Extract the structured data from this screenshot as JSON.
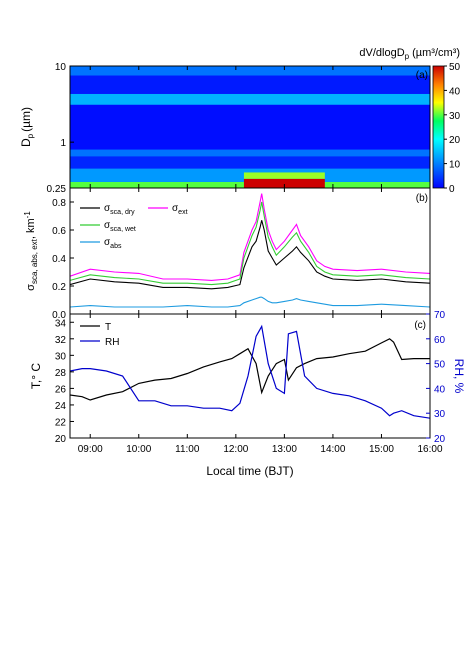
{
  "figure": {
    "xlabel": "Local time (BJT)",
    "x_ticks": [
      "09:00",
      "10:00",
      "11:00",
      "12:00",
      "13:00",
      "14:00",
      "15:00",
      "16:00"
    ],
    "x_range": [
      "08:35",
      "16:00"
    ]
  },
  "colors": {
    "sca_dry": "#000000",
    "sca_wet": "#33cc33",
    "ext": "#ff00ff",
    "abs": "#1e9be0",
    "T": "#000000",
    "RH": "#0000cc"
  },
  "chart_data": [
    {
      "type": "heatmap",
      "panel": "(a)",
      "title": "dV/dlogD",
      "title_sub": "p",
      "title_unit": "(µm³/cm³)",
      "ylabel": "D",
      "ylabel_sub": "p",
      "ylabel_unit": "(µm)",
      "y_scale": "log",
      "ylim": [
        0.25,
        10
      ],
      "y_ticks": [
        "10",
        "1",
        "0.25"
      ],
      "colorbar": {
        "min": 0,
        "max": 50,
        "ticks": [
          "50",
          "40",
          "30",
          "20",
          "10",
          "0"
        ]
      },
      "bands": [
        {
          "from": "08:35",
          "to": "16:00",
          "dmin": 0.25,
          "dmax": 0.3,
          "value": 30
        },
        {
          "from": "08:35",
          "to": "16:00",
          "dmin": 0.3,
          "dmax": 0.45,
          "value": 12
        },
        {
          "from": "08:35",
          "to": "16:00",
          "dmin": 0.45,
          "dmax": 0.65,
          "value": 3
        },
        {
          "from": "08:35",
          "to": "16:00",
          "dmin": 0.65,
          "dmax": 0.8,
          "value": 9
        },
        {
          "from": "08:35",
          "to": "16:00",
          "dmin": 0.8,
          "dmax": 3.1,
          "value": 1
        },
        {
          "from": "08:35",
          "to": "16:00",
          "dmin": 3.1,
          "dmax": 4.3,
          "value": 14
        },
        {
          "from": "08:35",
          "to": "16:00",
          "dmin": 4.3,
          "dmax": 7.5,
          "value": 2
        },
        {
          "from": "08:35",
          "to": "16:00",
          "dmin": 7.5,
          "dmax": 10,
          "value": 9
        },
        {
          "from": "12:10",
          "to": "13:50",
          "dmin": 0.25,
          "dmax": 0.33,
          "value": 50
        },
        {
          "from": "12:10",
          "to": "13:50",
          "dmin": 0.33,
          "dmax": 0.4,
          "value": 32
        }
      ]
    },
    {
      "type": "line",
      "panel": "(b)",
      "ylabel": "σ",
      "ylabel_sub": "sca, abs, ext",
      "ylabel_unit": ", km",
      "ylabel_sup": "-1",
      "ylim": [
        0.0,
        0.9
      ],
      "y_ticks": [
        "0.0",
        "0.2",
        "0.4",
        "0.6",
        "0.8"
      ],
      "legend_position": "top-left",
      "legend": [
        {
          "base": "σ",
          "sub": "sca, dry"
        },
        {
          "base": "σ",
          "sub": "ext"
        },
        {
          "base": "σ",
          "sub": "sca, wet"
        },
        {
          "base": "σ",
          "sub": "abs"
        }
      ],
      "series": [
        {
          "name": "σsca, dry",
          "x": [
            "08:35",
            "09:00",
            "09:30",
            "10:00",
            "10:30",
            "11:00",
            "11:30",
            "11:50",
            "12:05",
            "12:10",
            "12:20",
            "12:25",
            "12:30",
            "12:32",
            "12:35",
            "12:40",
            "12:45",
            "12:50",
            "13:00",
            "13:10",
            "13:15",
            "13:20",
            "13:30",
            "13:40",
            "13:50",
            "14:00",
            "14:30",
            "15:00",
            "15:30",
            "16:00"
          ],
          "values": [
            0.21,
            0.25,
            0.23,
            0.22,
            0.19,
            0.19,
            0.18,
            0.19,
            0.21,
            0.33,
            0.48,
            0.52,
            0.62,
            0.67,
            0.6,
            0.45,
            0.4,
            0.35,
            0.4,
            0.45,
            0.48,
            0.44,
            0.38,
            0.3,
            0.27,
            0.25,
            0.24,
            0.25,
            0.23,
            0.22
          ]
        },
        {
          "name": "σsca, wet",
          "x": [
            "08:35",
            "09:00",
            "09:30",
            "10:00",
            "10:30",
            "11:00",
            "11:30",
            "11:50",
            "12:05",
            "12:10",
            "12:20",
            "12:25",
            "12:30",
            "12:32",
            "12:35",
            "12:40",
            "12:45",
            "12:50",
            "13:00",
            "13:10",
            "13:15",
            "13:20",
            "13:30",
            "13:40",
            "13:50",
            "14:00",
            "14:30",
            "15:00",
            "15:30",
            "16:00"
          ],
          "values": [
            0.24,
            0.28,
            0.26,
            0.25,
            0.22,
            0.22,
            0.21,
            0.22,
            0.25,
            0.4,
            0.56,
            0.62,
            0.74,
            0.8,
            0.7,
            0.55,
            0.48,
            0.42,
            0.48,
            0.55,
            0.58,
            0.52,
            0.44,
            0.34,
            0.3,
            0.28,
            0.27,
            0.28,
            0.26,
            0.25
          ]
        },
        {
          "name": "σext",
          "x": [
            "08:35",
            "09:00",
            "09:30",
            "10:00",
            "10:30",
            "11:00",
            "11:30",
            "11:50",
            "12:05",
            "12:10",
            "12:20",
            "12:25",
            "12:30",
            "12:32",
            "12:35",
            "12:40",
            "12:45",
            "12:50",
            "13:00",
            "13:10",
            "13:15",
            "13:20",
            "13:30",
            "13:40",
            "13:50",
            "14:00",
            "14:30",
            "15:00",
            "15:30",
            "16:00"
          ],
          "values": [
            0.27,
            0.32,
            0.3,
            0.29,
            0.25,
            0.25,
            0.24,
            0.25,
            0.28,
            0.44,
            0.6,
            0.66,
            0.8,
            0.86,
            0.75,
            0.6,
            0.52,
            0.46,
            0.52,
            0.6,
            0.64,
            0.56,
            0.48,
            0.38,
            0.34,
            0.32,
            0.31,
            0.32,
            0.3,
            0.29
          ]
        },
        {
          "name": "σabs",
          "x": [
            "08:35",
            "09:00",
            "09:30",
            "10:00",
            "10:30",
            "11:00",
            "11:30",
            "11:50",
            "12:05",
            "12:10",
            "12:20",
            "12:25",
            "12:30",
            "12:32",
            "12:35",
            "12:40",
            "12:45",
            "12:50",
            "13:00",
            "13:10",
            "13:15",
            "13:20",
            "13:30",
            "13:40",
            "13:50",
            "14:00",
            "14:30",
            "15:00",
            "15:30",
            "16:00"
          ],
          "values": [
            0.05,
            0.06,
            0.05,
            0.05,
            0.05,
            0.06,
            0.05,
            0.05,
            0.06,
            0.08,
            0.1,
            0.11,
            0.12,
            0.12,
            0.11,
            0.09,
            0.08,
            0.08,
            0.09,
            0.1,
            0.11,
            0.1,
            0.09,
            0.08,
            0.07,
            0.06,
            0.06,
            0.07,
            0.06,
            0.05
          ]
        }
      ]
    },
    {
      "type": "line",
      "panel": "(c)",
      "ylabel": "T,° C",
      "ylabel_right": "RH, %",
      "ylim": [
        20,
        35
      ],
      "ylim_right": [
        20,
        70
      ],
      "y_ticks": [
        "20",
        "22",
        "24",
        "26",
        "28",
        "30",
        "32",
        "34"
      ],
      "y_ticks_right": [
        "20",
        "30",
        "40",
        "50",
        "60",
        "70"
      ],
      "legend_position": "top-left",
      "legend": [
        {
          "base": "T"
        },
        {
          "base": "RH"
        }
      ],
      "series": [
        {
          "name": "T",
          "axis": "left",
          "x": [
            "08:35",
            "08:50",
            "09:00",
            "09:20",
            "09:40",
            "10:00",
            "10:20",
            "10:40",
            "11:00",
            "11:20",
            "11:40",
            "11:55",
            "12:05",
            "12:15",
            "12:25",
            "12:32",
            "12:40",
            "12:50",
            "13:00",
            "13:05",
            "13:15",
            "13:25",
            "13:40",
            "14:00",
            "14:20",
            "14:40",
            "15:00",
            "15:10",
            "15:15",
            "15:25",
            "15:40",
            "16:00"
          ],
          "values": [
            25.2,
            25.0,
            24.6,
            25.2,
            25.6,
            26.6,
            27.0,
            27.2,
            27.8,
            28.6,
            29.2,
            29.6,
            30.2,
            30.8,
            29.0,
            25.5,
            27.5,
            29.0,
            29.5,
            27.0,
            28.5,
            29.0,
            29.6,
            29.8,
            30.2,
            30.5,
            31.5,
            32.0,
            31.6,
            29.5,
            29.6,
            29.6
          ]
        },
        {
          "name": "RH",
          "axis": "right",
          "x": [
            "08:35",
            "08:50",
            "09:00",
            "09:20",
            "09:40",
            "10:00",
            "10:20",
            "10:40",
            "11:00",
            "11:20",
            "11:40",
            "11:55",
            "12:05",
            "12:15",
            "12:25",
            "12:32",
            "12:40",
            "12:50",
            "13:00",
            "13:05",
            "13:15",
            "13:25",
            "13:40",
            "14:00",
            "14:20",
            "14:40",
            "15:00",
            "15:10",
            "15:15",
            "15:25",
            "15:40",
            "16:00"
          ],
          "values": [
            47,
            48,
            48,
            47,
            45,
            35,
            35,
            33,
            33,
            32,
            32,
            31,
            34,
            45,
            61,
            65,
            50,
            40,
            38,
            62,
            63,
            45,
            40,
            38,
            37,
            35,
            32,
            29,
            30,
            31,
            29,
            28
          ]
        }
      ]
    }
  ]
}
